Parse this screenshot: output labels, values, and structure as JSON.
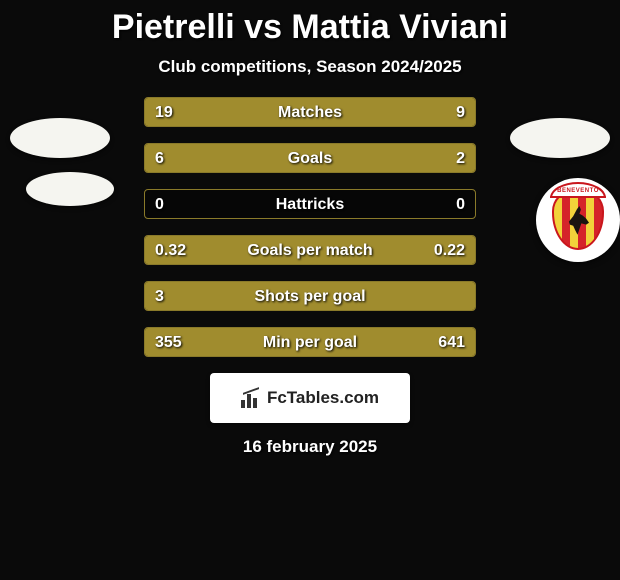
{
  "title": "Pietrelli vs Mattia Viviani",
  "subtitle": "Club competitions, Season 2024/2025",
  "date": "16 february 2025",
  "branding": {
    "text": "FcTables.com"
  },
  "crest_banner_text": "BENEVENTO",
  "colors": {
    "bar": "#a08c2e",
    "border": "#8a7a2a",
    "background": "#0a0a0a",
    "badge": "#f5f5f0",
    "crest_stripe_a": "#f2d23a",
    "crest_stripe_b": "#d5232a"
  },
  "stats": [
    {
      "label": "Matches",
      "left_val": "19",
      "right_val": "9",
      "left_pct": 68,
      "right_pct": 32
    },
    {
      "label": "Goals",
      "left_val": "6",
      "right_val": "2",
      "left_pct": 75,
      "right_pct": 25
    },
    {
      "label": "Hattricks",
      "left_val": "0",
      "right_val": "0",
      "left_pct": 0,
      "right_pct": 0
    },
    {
      "label": "Goals per match",
      "left_val": "0.32",
      "right_val": "0.22",
      "left_pct": 59,
      "right_pct": 41
    },
    {
      "label": "Shots per goal",
      "left_val": "3",
      "right_val": "",
      "left_pct": 100,
      "right_pct": 0
    },
    {
      "label": "Min per goal",
      "left_val": "355",
      "right_val": "641",
      "left_pct": 36,
      "right_pct": 64
    }
  ]
}
